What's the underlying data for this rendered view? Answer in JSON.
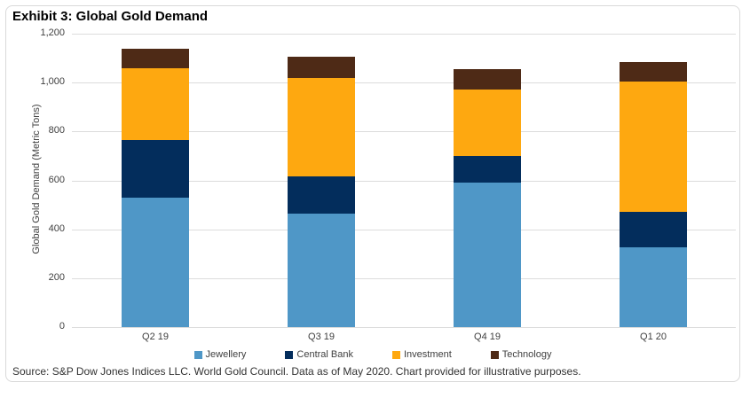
{
  "title": "Exhibit 3: Global Gold Demand",
  "source": "Source: S&P Dow Jones Indices LLC. World Gold Council. Data as of May 2020. Chart provided for illustrative purposes.",
  "y_axis": {
    "label": "Global Gold Demand (Metric Tons)",
    "tick_labels": [
      "1,200",
      "1,000",
      "800",
      "600",
      "400",
      "200",
      "0"
    ]
  },
  "colors": {
    "jewellery": "#4f97c7",
    "central_bank": "#032d5c",
    "investment": "#fea810",
    "technology": "#4e2a16",
    "gridline": "#dcdcdc",
    "border": "#d9d9d9"
  },
  "chart_data": {
    "type": "bar",
    "stacked": true,
    "title": "Exhibit 3: Global Gold Demand",
    "xlabel": "",
    "ylabel": "Global Gold Demand (Metric Tons)",
    "ylim": [
      0,
      1200
    ],
    "ytick_step": 200,
    "grid": true,
    "legend_position": "bottom",
    "categories": [
      "Q2 19",
      "Q3 19",
      "Q4 19",
      "Q1 20"
    ],
    "series": [
      {
        "name": "Jewellery",
        "color": "#4f97c7",
        "values": [
          530,
          465,
          590,
          325
        ]
      },
      {
        "name": "Central Bank",
        "color": "#032d5c",
        "values": [
          235,
          150,
          110,
          145
        ]
      },
      {
        "name": "Investment",
        "color": "#fea810",
        "values": [
          295,
          405,
          270,
          535
        ]
      },
      {
        "name": "Technology",
        "color": "#4e2a16",
        "values": [
          80,
          85,
          85,
          80
        ]
      }
    ],
    "totals": [
      1140,
      1105,
      1055,
      1085
    ]
  }
}
